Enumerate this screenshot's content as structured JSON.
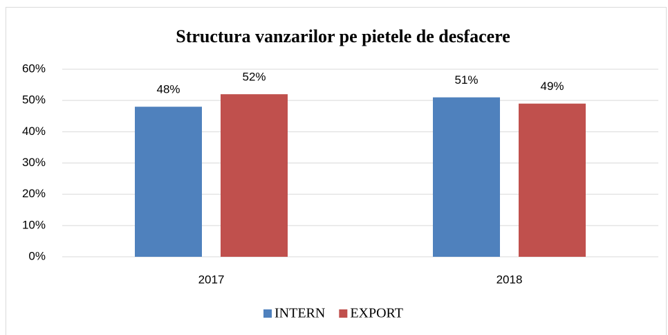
{
  "chart_data": {
    "type": "bar",
    "title": "Structura vanzarilor pe pietele de desfacere",
    "categories": [
      "2017",
      "2018"
    ],
    "series": [
      {
        "name": "INTERN",
        "color": "#4f81bd",
        "values": [
          48,
          51
        ],
        "value_labels": [
          "48%",
          "51%"
        ]
      },
      {
        "name": "EXPORT",
        "color": "#c0504d",
        "values": [
          52,
          49
        ],
        "value_labels": [
          "52%",
          "49%"
        ]
      }
    ],
    "ylim": [
      0,
      60
    ],
    "yticks": [
      {
        "value": 0,
        "label": "0%"
      },
      {
        "value": 10,
        "label": "10%"
      },
      {
        "value": 20,
        "label": "20%"
      },
      {
        "value": 30,
        "label": "30%"
      },
      {
        "value": 40,
        "label": "40%"
      },
      {
        "value": 50,
        "label": "50%"
      },
      {
        "value": 60,
        "label": "60%"
      }
    ],
    "grid": true,
    "legend": "bottom"
  }
}
